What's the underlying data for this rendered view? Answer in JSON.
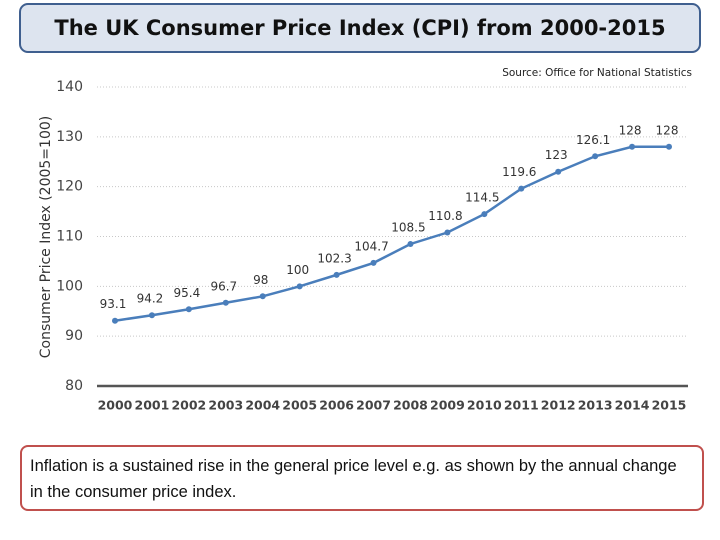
{
  "chart_data": {
    "type": "line",
    "title": "The UK Consumer Price Index (CPI) from 2000-2015",
    "subtitle": "Source: Office for National Statistics",
    "y_label": "Consumer Price Index (2005=100)",
    "categories": [
      "2000",
      "2001",
      "2002",
      "2003",
      "2004",
      "2005",
      "2006",
      "2007",
      "2008",
      "2009",
      "2010",
      "2011",
      "2012",
      "2013",
      "2014",
      "2015"
    ],
    "values": [
      93.1,
      94.2,
      95.4,
      96.7,
      98,
      100,
      102.3,
      104.7,
      108.5,
      110.8,
      114.5,
      119.6,
      123,
      126.1,
      128,
      128
    ],
    "color": "#4a7ebb",
    "ylim": [
      80,
      140
    ],
    "yticks": [
      80,
      90,
      100,
      110,
      120,
      130,
      140
    ],
    "grid": true
  },
  "note": "Inflation is a sustained rise in the general price level e.g. as shown by the annual change in the consumer price index."
}
